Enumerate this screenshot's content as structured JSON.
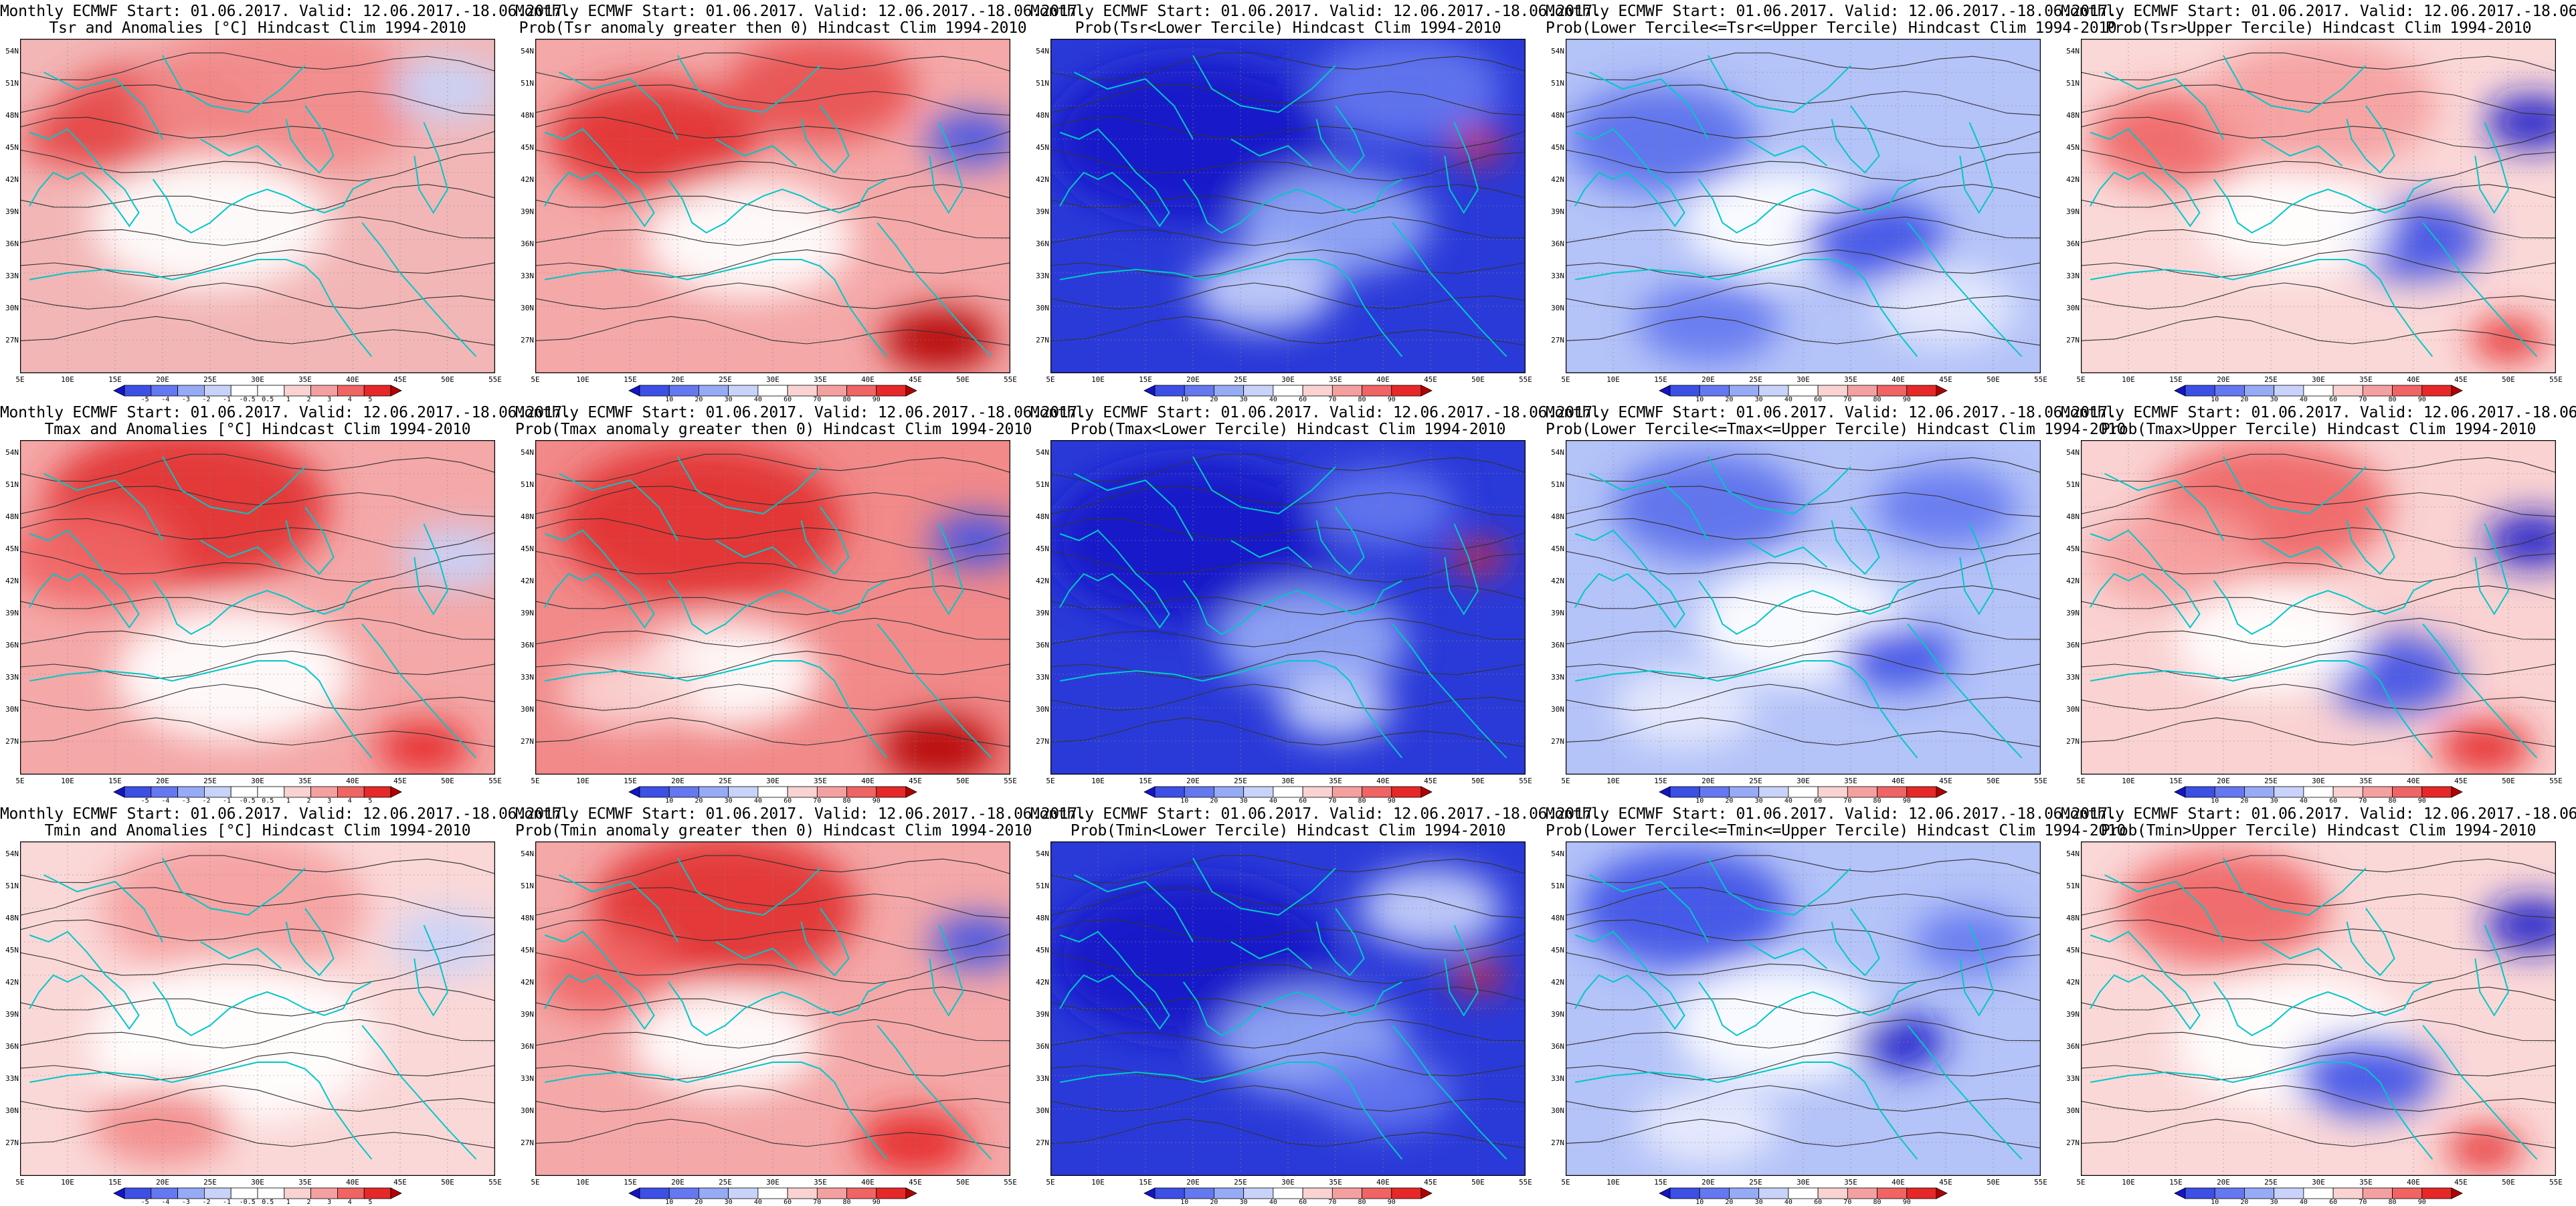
{
  "title_line1": "Monthly ECMWF Start: 01.06.2017. Valid: 12.06.2017.-18.06.2017.",
  "lat_labels": [
    "54N",
    "51N",
    "48N",
    "45N",
    "42N",
    "39N",
    "36N",
    "33N",
    "30N",
    "27N"
  ],
  "lon_labels": [
    "5E",
    "10E",
    "15E",
    "20E",
    "25E",
    "30E",
    "35E",
    "40E",
    "45E",
    "50E",
    "55E"
  ],
  "colors": {
    "land_line": "#00c8c8",
    "contour": "#333333",
    "anom_scale": [
      "#1414c8",
      "#3c50e6",
      "#6478f0",
      "#96aaf5",
      "#c8d2fa",
      "#ffffff",
      "#ffffff",
      "#fad2d2",
      "#f5a0a0",
      "#f06464",
      "#e62828",
      "#b40000"
    ],
    "prob_scale": [
      "#1414c8",
      "#3c50e6",
      "#6478f0",
      "#96aaf5",
      "#c8d2fa",
      "#ffffff",
      "#fad2d2",
      "#f5a0a0",
      "#f06464",
      "#e62828",
      "#b40000"
    ]
  },
  "scales": {
    "anom": [
      "-5",
      "-4",
      "-3",
      "-2",
      "-1",
      "-0.5",
      "0.5",
      "1",
      "2",
      "3",
      "4",
      "5"
    ],
    "prob": [
      "10",
      "20",
      "30",
      "40",
      "60",
      "70",
      "80",
      "90"
    ]
  },
  "panels": [
    {
      "title2": "Tsr and Anomalies [°C] Hindcast Clim 1994-2010",
      "scale": "anom",
      "base": "#f3b6b6",
      "blobs": [
        [
          "#e64646",
          0.28,
          0.25,
          0.22
        ],
        [
          "#f28a8a",
          0.55,
          0.18,
          0.3
        ],
        [
          "#c8d4fa",
          0.9,
          0.15,
          0.12
        ],
        [
          "#ffffff",
          0.4,
          0.55,
          0.25
        ],
        [
          "#e64646",
          0.1,
          0.3,
          0.1
        ]
      ]
    },
    {
      "title2": "Prob(Tsr anomaly greater then 0) Hindcast Clim 1994-2010",
      "scale": "prob",
      "base": "#f5a8a8",
      "blobs": [
        [
          "#e23030",
          0.25,
          0.3,
          0.22
        ],
        [
          "#e85050",
          0.6,
          0.15,
          0.2
        ],
        [
          "#3c50e6",
          0.92,
          0.3,
          0.1
        ],
        [
          "#ffffff",
          0.45,
          0.6,
          0.22
        ],
        [
          "#b40000",
          0.85,
          0.9,
          0.12
        ]
      ]
    },
    {
      "title2": "Prob(Tsr<Lower Tercile) Hindcast Clim 1994-2010",
      "scale": "prob",
      "base": "#2a3ad8",
      "blobs": [
        [
          "#1414c8",
          0.3,
          0.3,
          0.3
        ],
        [
          "#96aaf5",
          0.6,
          0.55,
          0.2
        ],
        [
          "#c8d2fa",
          0.45,
          0.75,
          0.15
        ],
        [
          "#e62828",
          0.9,
          0.32,
          0.06
        ],
        [
          "#6478f0",
          0.75,
          0.15,
          0.2
        ]
      ]
    },
    {
      "title2": "Prob(Lower Tercile<=Tsr<=Upper Tercile) Hindcast Clim 1994-2010",
      "scale": "prob",
      "base": "#b4c3f8",
      "blobs": [
        [
          "#5a6fec",
          0.2,
          0.3,
          0.2
        ],
        [
          "#ffffff",
          0.45,
          0.55,
          0.2
        ],
        [
          "#3c50e6",
          0.65,
          0.6,
          0.15
        ],
        [
          "#e8ecfd",
          0.8,
          0.8,
          0.15
        ],
        [
          "#6478f0",
          0.3,
          0.85,
          0.15
        ]
      ]
    },
    {
      "title2": "Prob(Tsr>Upper Tercile) Hindcast Clim 1994-2010",
      "scale": "prob",
      "base": "#fbd8d8",
      "blobs": [
        [
          "#f06464",
          0.2,
          0.3,
          0.18
        ],
        [
          "#f5a0a0",
          0.5,
          0.2,
          0.25
        ],
        [
          "#3c50e6",
          0.7,
          0.6,
          0.15
        ],
        [
          "#1414c8",
          0.95,
          0.25,
          0.1
        ],
        [
          "#ffffff",
          0.45,
          0.55,
          0.2
        ],
        [
          "#e62828",
          0.9,
          0.9,
          0.08
        ]
      ]
    },
    {
      "title2": "Tmax and Anomalies [°C] Hindcast Clim 1994-2010",
      "scale": "anom",
      "base": "#f5a8a8",
      "blobs": [
        [
          "#e23030",
          0.35,
          0.2,
          0.3
        ],
        [
          "#f06464",
          0.15,
          0.35,
          0.18
        ],
        [
          "#ffffff",
          0.45,
          0.7,
          0.25
        ],
        [
          "#c8d2fa",
          0.92,
          0.35,
          0.12
        ],
        [
          "#e62828",
          0.85,
          0.92,
          0.1
        ]
      ]
    },
    {
      "title2": "Prob(Tmax anomaly greater then 0) Hindcast Clim 1994-2010",
      "scale": "prob",
      "base": "#f28a8a",
      "blobs": [
        [
          "#e23030",
          0.35,
          0.25,
          0.3
        ],
        [
          "#3c50e6",
          0.93,
          0.3,
          0.1
        ],
        [
          "#ffffff",
          0.4,
          0.7,
          0.2
        ],
        [
          "#b40000",
          0.85,
          0.92,
          0.12
        ],
        [
          "#fad2d2",
          0.2,
          0.75,
          0.15
        ]
      ]
    },
    {
      "title2": "Prob(Tmax<Lower Tercile) Hindcast Clim 1994-2010",
      "scale": "prob",
      "base": "#2a3ad8",
      "blobs": [
        [
          "#1414c8",
          0.3,
          0.3,
          0.3
        ],
        [
          "#96aaf5",
          0.55,
          0.6,
          0.2
        ],
        [
          "#c8d2fa",
          0.6,
          0.8,
          0.12
        ],
        [
          "#e62828",
          0.9,
          0.35,
          0.06
        ],
        [
          "#6478f0",
          0.7,
          0.2,
          0.15
        ]
      ]
    },
    {
      "title2": "Prob(Lower Tercile<=Tmax<=Upper Tercile) Hindcast Clim 1994-2010",
      "scale": "prob",
      "base": "#b4c3f8",
      "blobs": [
        [
          "#5a6fec",
          0.3,
          0.2,
          0.2
        ],
        [
          "#ffffff",
          0.5,
          0.55,
          0.22
        ],
        [
          "#3c50e6",
          0.7,
          0.65,
          0.12
        ],
        [
          "#e8ecfd",
          0.25,
          0.8,
          0.15
        ],
        [
          "#6478f0",
          0.8,
          0.2,
          0.15
        ]
      ]
    },
    {
      "title2": "Prob(Tmax>Upper Tercile) Hindcast Clim 1994-2010",
      "scale": "prob",
      "base": "#fad2d2",
      "blobs": [
        [
          "#f06464",
          0.4,
          0.2,
          0.25
        ],
        [
          "#f5a0a0",
          0.2,
          0.35,
          0.18
        ],
        [
          "#1414c8",
          0.95,
          0.3,
          0.1
        ],
        [
          "#3c50e6",
          0.65,
          0.7,
          0.15
        ],
        [
          "#ffffff",
          0.4,
          0.6,
          0.2
        ],
        [
          "#e62828",
          0.85,
          0.92,
          0.1
        ]
      ]
    },
    {
      "title2": "Tmin and Anomalies [°C] Hindcast Clim 1994-2010",
      "scale": "anom",
      "base": "#fbd8d8",
      "blobs": [
        [
          "#f5a0a0",
          0.45,
          0.2,
          0.28
        ],
        [
          "#ffffff",
          0.45,
          0.6,
          0.3
        ],
        [
          "#c8d2fa",
          0.9,
          0.3,
          0.12
        ],
        [
          "#f28a8a",
          0.3,
          0.85,
          0.15
        ]
      ]
    },
    {
      "title2": "Prob(Tmin anomaly greater then 0) Hindcast Clim 1994-2010",
      "scale": "prob",
      "base": "#f5a8a8",
      "blobs": [
        [
          "#e23030",
          0.4,
          0.2,
          0.28
        ],
        [
          "#3c50e6",
          0.93,
          0.3,
          0.1
        ],
        [
          "#ffffff",
          0.4,
          0.6,
          0.2
        ],
        [
          "#e62828",
          0.8,
          0.9,
          0.12
        ],
        [
          "#f06464",
          0.15,
          0.4,
          0.15
        ]
      ]
    },
    {
      "title2": "Prob(Tmin<Lower Tercile) Hindcast Clim 1994-2010",
      "scale": "prob",
      "base": "#2a3ad8",
      "blobs": [
        [
          "#1414c8",
          0.3,
          0.35,
          0.3
        ],
        [
          "#96aaf5",
          0.55,
          0.6,
          0.2
        ],
        [
          "#c8d2fa",
          0.8,
          0.2,
          0.15
        ],
        [
          "#e62828",
          0.9,
          0.4,
          0.06
        ],
        [
          "#6478f0",
          0.7,
          0.75,
          0.15
        ]
      ]
    },
    {
      "title2": "Prob(Lower Tercile<=Tmin<=Upper Tercile) Hindcast Clim 1994-2010",
      "scale": "prob",
      "base": "#b4c3f8",
      "blobs": [
        [
          "#3c50e6",
          0.25,
          0.2,
          0.22
        ],
        [
          "#ffffff",
          0.45,
          0.55,
          0.22
        ],
        [
          "#1414c8",
          0.7,
          0.6,
          0.1
        ],
        [
          "#e8ecfd",
          0.3,
          0.85,
          0.15
        ],
        [
          "#6478f0",
          0.85,
          0.3,
          0.12
        ]
      ]
    },
    {
      "title2": "Prob(Tmin>Upper Tercile) Hindcast Clim 1994-2010",
      "scale": "prob",
      "base": "#fbd8d8",
      "blobs": [
        [
          "#f06464",
          0.3,
          0.2,
          0.22
        ],
        [
          "#ffffff",
          0.45,
          0.6,
          0.25
        ],
        [
          "#1414c8",
          0.95,
          0.25,
          0.1
        ],
        [
          "#3c50e6",
          0.6,
          0.7,
          0.15
        ],
        [
          "#e62828",
          0.85,
          0.92,
          0.08
        ]
      ]
    }
  ]
}
